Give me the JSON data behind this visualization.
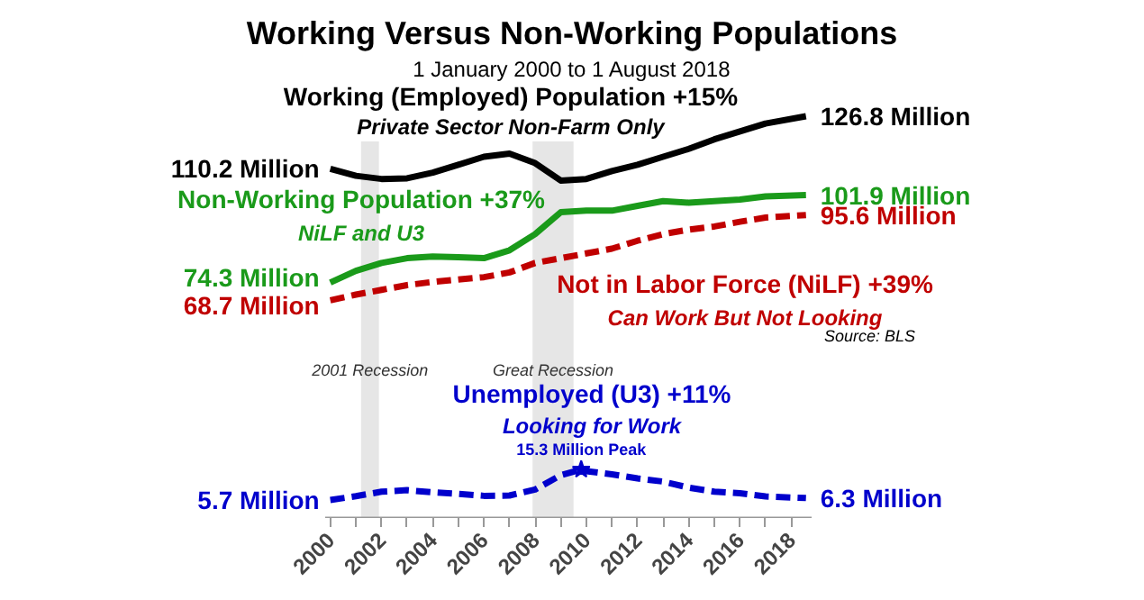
{
  "chart_data": {
    "type": "line",
    "title": "Working Versus Non-Working Populations",
    "subtitle": "1 January 2000 to 1 August 2018",
    "xlim": [
      1999.8,
      2018.8
    ],
    "xticks": [
      2000,
      {
        "value": 2001,
        "label": null
      },
      2002,
      {
        "value": 2003,
        "label": null
      },
      2004,
      {
        "value": 2005,
        "label": null
      },
      2006,
      {
        "value": 2007,
        "label": null
      },
      2008,
      {
        "value": 2009,
        "label": null
      },
      2010,
      {
        "value": 2011,
        "label": null
      },
      2012,
      {
        "value": 2013,
        "label": null
      },
      2014,
      {
        "value": 2015,
        "label": null
      },
      2016,
      {
        "value": 2017,
        "label": null
      },
      2018
    ],
    "tick_labels": "x",
    "series": [
      {
        "name": "Working (Employed) Population +15%",
        "color": "#000000",
        "line_style": "solid",
        "x": [
          2000,
          2001,
          2002,
          2003,
          2004,
          2005,
          2006,
          2007,
          2008,
          2009,
          2010,
          2011,
          2012,
          2013,
          2014,
          2015,
          2016,
          2017,
          2018.58
        ],
        "values": [
          110.2,
          108,
          107,
          107.2,
          109,
          111.5,
          114,
          115,
          112,
          106.5,
          107,
          109.5,
          111.5,
          114,
          116.5,
          119.5,
          122,
          124.5,
          126.8
        ],
        "value_labels": [
          "110.2 Million",
          null,
          null,
          null,
          null,
          null,
          null,
          null,
          null,
          null,
          null,
          null,
          null,
          null,
          null,
          null,
          null,
          null,
          "126.8 Million"
        ]
      },
      {
        "name": "Non-Working Population +37%",
        "color": "#1a9a1a",
        "line_style": "solid",
        "x": [
          2000,
          2001,
          2002,
          2003,
          2004,
          2005,
          2006,
          2007,
          2008,
          2009,
          2010,
          2011,
          2012,
          2013,
          2014,
          2015,
          2016,
          2017,
          2018.58
        ],
        "values": [
          74.3,
          78,
          80.5,
          82,
          82.5,
          82.3,
          82,
          84.5,
          89.6,
          96.5,
          97,
          97,
          98.5,
          100,
          99.5,
          100,
          100.5,
          101.5,
          101.9
        ],
        "value_labels": [
          "74.3 Million",
          null,
          null,
          null,
          null,
          null,
          null,
          null,
          null,
          null,
          null,
          null,
          null,
          null,
          null,
          null,
          null,
          null,
          "101.9 Million"
        ]
      },
      {
        "name": "Not in Labor Force (NiLF) +39%",
        "color": "#c00000",
        "line_style": "dashed",
        "x": [
          2000,
          2001,
          2002,
          2003,
          2004,
          2005,
          2006,
          2007,
          2008,
          2009,
          2010,
          2011,
          2012,
          2013,
          2014,
          2015,
          2016,
          2017,
          2018.58
        ],
        "values": [
          68.7,
          70.5,
          72,
          73.5,
          74.5,
          75.3,
          76,
          77.5,
          80.5,
          82,
          83.5,
          85,
          87.5,
          89.6,
          91,
          92,
          93.5,
          94.8,
          95.6
        ],
        "value_labels": [
          "68.7 Million",
          null,
          null,
          null,
          null,
          null,
          null,
          null,
          null,
          null,
          null,
          null,
          null,
          null,
          null,
          null,
          null,
          null,
          "95.6 Million"
        ]
      },
      {
        "name": "Unemployed (U3) +11%",
        "color": "#0000cc",
        "line_style": "dashed",
        "x": [
          2000,
          2001,
          2002,
          2003,
          2004,
          2005,
          2006,
          2007,
          2008,
          2009,
          2009.8,
          2010,
          2011,
          2012,
          2013,
          2014,
          2015,
          2016,
          2017,
          2018.58
        ],
        "values": [
          5.7,
          6.9,
          8.3,
          8.8,
          8.1,
          7.6,
          7.0,
          7.1,
          9.0,
          13.5,
          15.3,
          14.8,
          13.8,
          12.5,
          11.5,
          9.6,
          8.3,
          7.8,
          6.8,
          6.3
        ],
        "value_labels": [
          "5.7 Million",
          null,
          null,
          null,
          null,
          null,
          null,
          null,
          null,
          null,
          null,
          null,
          null,
          null,
          null,
          null,
          null,
          null,
          null,
          "6.3 Million"
        ]
      }
    ],
    "bands": [
      {
        "axis": "x",
        "from": 2001.2,
        "to": 2001.9,
        "label": "2001 Recession",
        "color": "#e6e6e6"
      },
      {
        "axis": "x",
        "from": 2007.9,
        "to": 2009.5,
        "label": "Great Recession",
        "color": "#e6e6e6"
      }
    ],
    "annotations": [
      "Private Sector Non-Farm Only",
      "NiLF and U3",
      "Can Work But Not Looking",
      "Looking for Work",
      {
        "text": "15.3 Million Peak",
        "x": 2009.8,
        "y": 15.3
      },
      "Source: BLS"
    ]
  }
}
